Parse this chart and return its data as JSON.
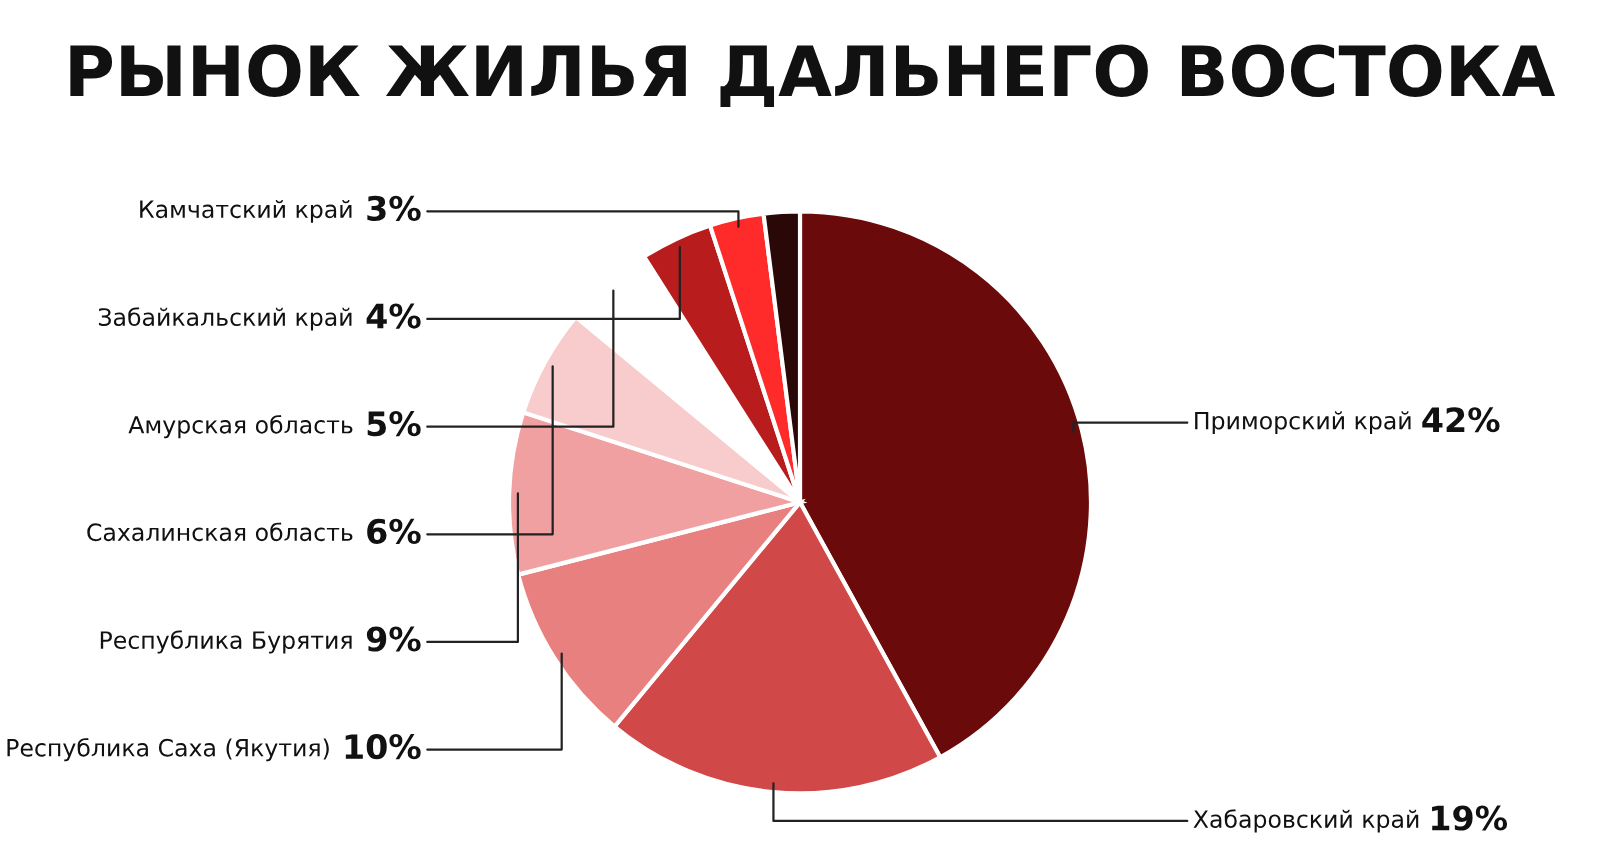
{
  "chart_data": {
    "type": "pie",
    "title": "РЫНОК ЖИЛЬЯ ДАЛЬНЕГО ВОСТОКА",
    "categories": [
      "Приморский край",
      "Хабаровский край",
      "Республика Саха (Якутия)",
      "Республика Бурятия",
      "Сахалинская область",
      "Амурская область",
      "Забайкальский край",
      "Камчатский край",
      null
    ],
    "values": [
      42,
      19,
      10,
      9,
      6,
      5,
      4,
      3,
      2
    ],
    "value_labels": [
      "42%",
      "19%",
      "10%",
      "9%",
      "6%",
      "5%",
      "4%",
      "3%",
      null
    ],
    "colors": [
      "#6b0a0a",
      "#d04848",
      "#e88080",
      "#f0a0a0",
      "#f8cccc",
      "#ffffff",
      "#b81c1c",
      "#ff2a2a",
      "#2a0808"
    ],
    "legend": false
  }
}
